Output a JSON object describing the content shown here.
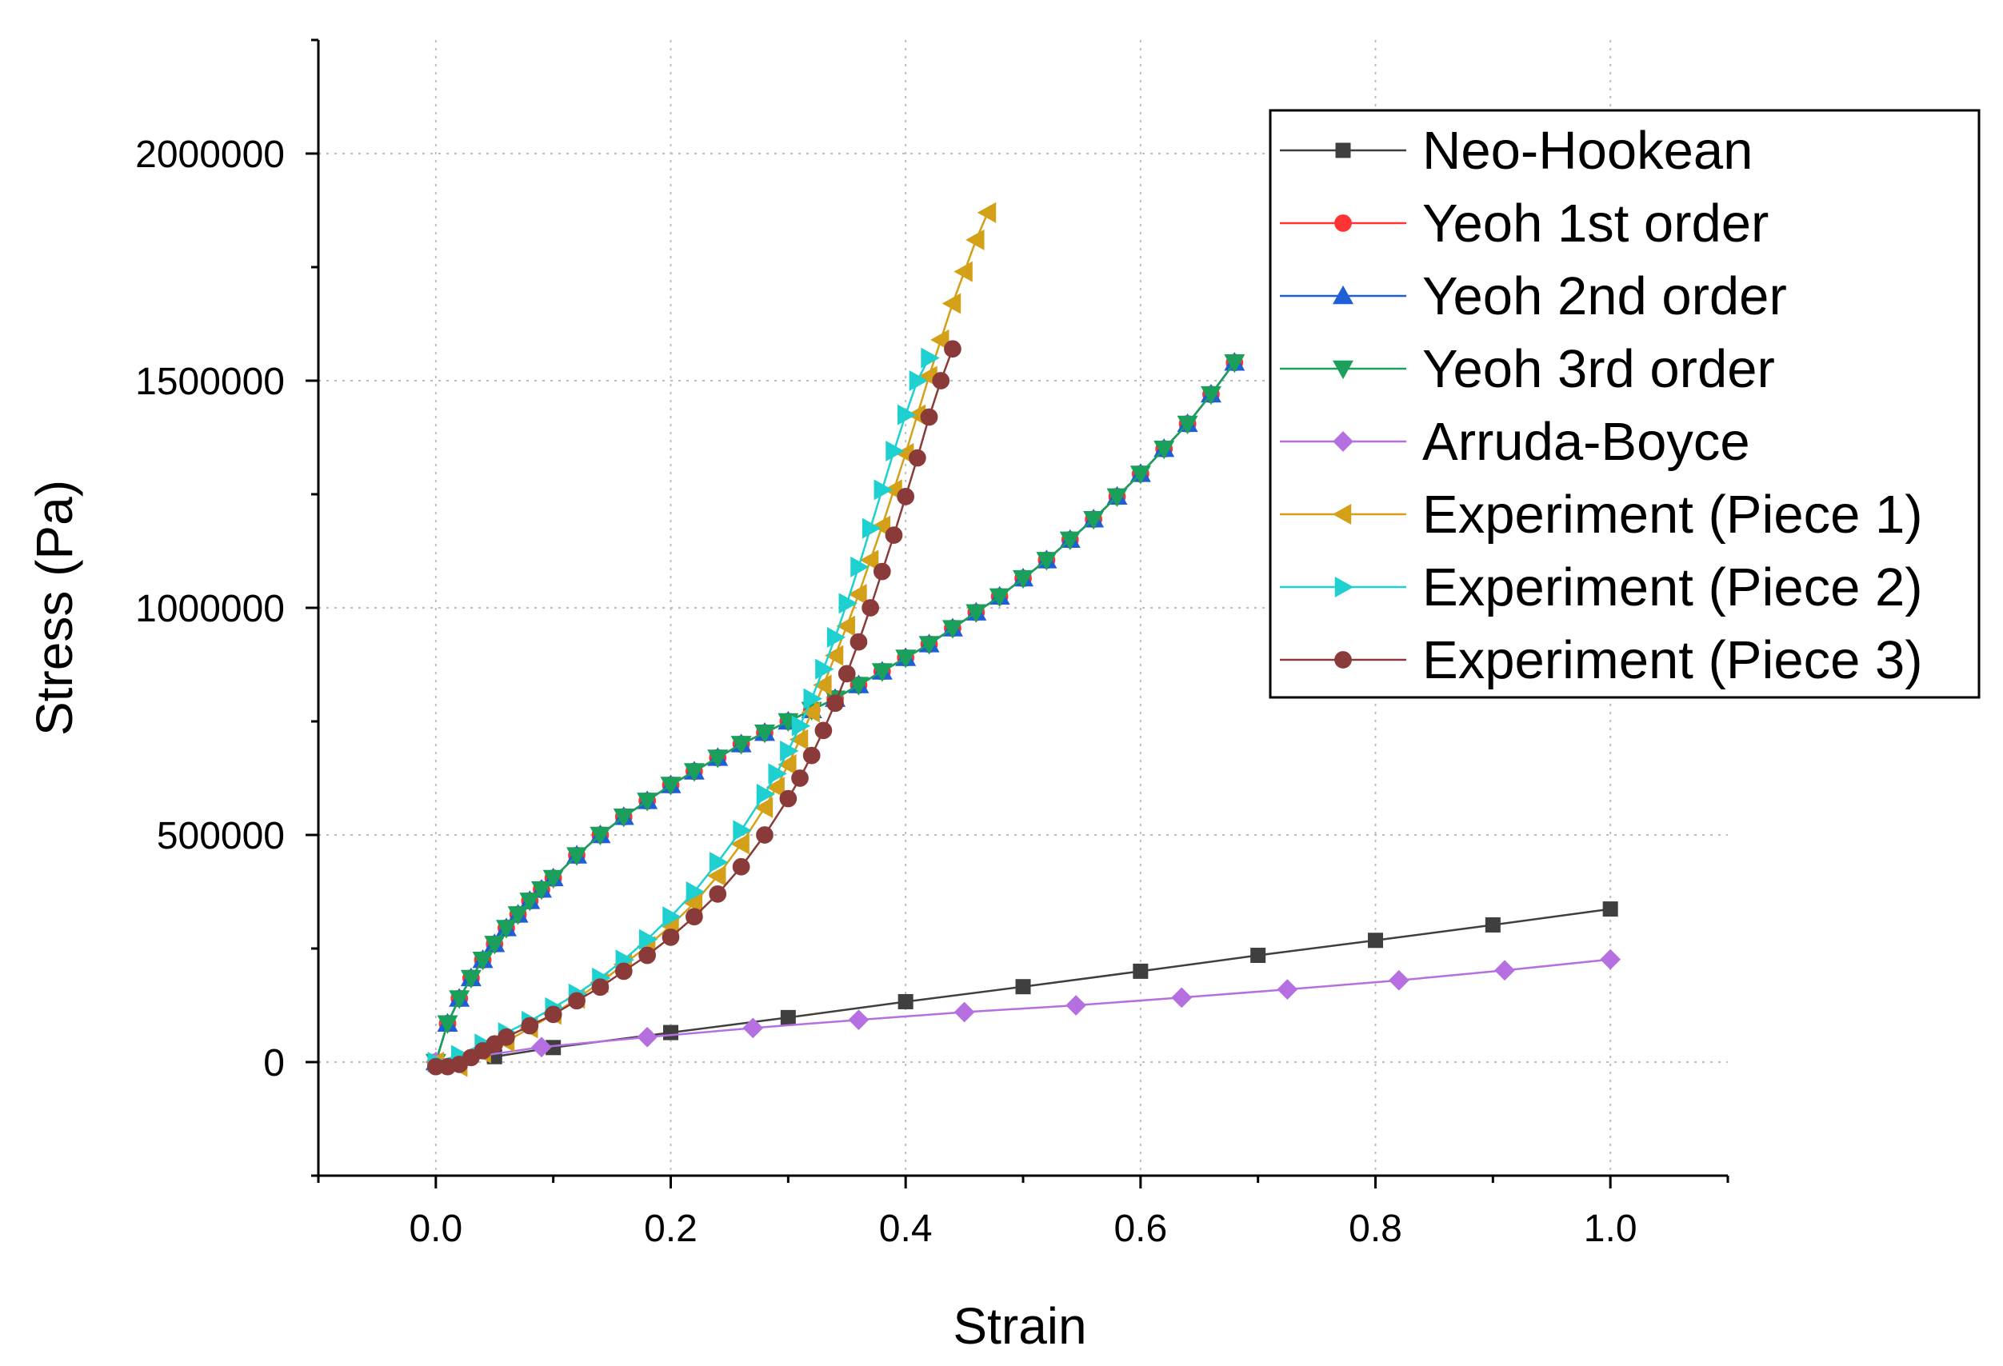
{
  "chart_data": {
    "type": "line",
    "title": "",
    "xlabel": "Strain",
    "ylabel": "Stress (Pa)",
    "xlim": [
      -0.1,
      1.1
    ],
    "ylim": [
      -250000,
      2250000
    ],
    "x_ticks": [
      0.0,
      0.2,
      0.4,
      0.6,
      0.8,
      1.0
    ],
    "x_tick_labels": [
      "0.0",
      "0.2",
      "0.4",
      "0.6",
      "0.8",
      "1.0"
    ],
    "y_ticks": [
      0,
      500000,
      1000000,
      1500000,
      2000000
    ],
    "y_tick_labels": [
      "0",
      "500000",
      "1000000",
      "1500000",
      "2000000"
    ],
    "grid": true,
    "legend_position": "top-right",
    "series": [
      {
        "name": "Neo-Hookean",
        "color": "#3f3f3f",
        "marker": "square",
        "x": [
          0,
          0.05,
          0.1,
          0.2,
          0.3,
          0.4,
          0.5,
          0.6,
          0.7,
          0.8,
          0.9,
          1.0
        ],
        "y": [
          0,
          12000,
          32000,
          65000,
          98000,
          133000,
          166000,
          200000,
          235000,
          268000,
          302000,
          337000
        ]
      },
      {
        "name": "Yeoh 1st order",
        "color": "#ff3333",
        "marker": "circle",
        "x": [
          0,
          0.01,
          0.02,
          0.03,
          0.04,
          0.05,
          0.06,
          0.07,
          0.08,
          0.09,
          0.1,
          0.12,
          0.14,
          0.16,
          0.18,
          0.2,
          0.22,
          0.24,
          0.26,
          0.28,
          0.3,
          0.32,
          0.34,
          0.36,
          0.38,
          0.4,
          0.42,
          0.44,
          0.46,
          0.48,
          0.5,
          0.52,
          0.54,
          0.56,
          0.58,
          0.6,
          0.62,
          0.64,
          0.66,
          0.68
        ],
        "y": [
          0,
          85000,
          140000,
          185000,
          225000,
          260000,
          295000,
          325000,
          355000,
          380000,
          405000,
          455000,
          500000,
          540000,
          575000,
          610000,
          640000,
          670000,
          700000,
          725000,
          750000,
          775000,
          800000,
          830000,
          860000,
          890000,
          920000,
          955000,
          990000,
          1025000,
          1065000,
          1105000,
          1150000,
          1195000,
          1245000,
          1295000,
          1350000,
          1405000,
          1470000,
          1540000
        ]
      },
      {
        "name": "Yeoh 2nd order",
        "color": "#1f5fd6",
        "marker": "triangle-up",
        "x": [
          0,
          0.01,
          0.02,
          0.03,
          0.04,
          0.05,
          0.06,
          0.07,
          0.08,
          0.09,
          0.1,
          0.12,
          0.14,
          0.16,
          0.18,
          0.2,
          0.22,
          0.24,
          0.26,
          0.28,
          0.3,
          0.32,
          0.34,
          0.36,
          0.38,
          0.4,
          0.42,
          0.44,
          0.46,
          0.48,
          0.5,
          0.52,
          0.54,
          0.56,
          0.58,
          0.6,
          0.62,
          0.64,
          0.66,
          0.68
        ],
        "y": [
          0,
          85000,
          140000,
          185000,
          225000,
          260000,
          295000,
          325000,
          355000,
          380000,
          405000,
          455000,
          500000,
          540000,
          575000,
          610000,
          640000,
          670000,
          700000,
          725000,
          750000,
          775000,
          800000,
          830000,
          860000,
          890000,
          920000,
          955000,
          990000,
          1025000,
          1065000,
          1105000,
          1150000,
          1195000,
          1245000,
          1295000,
          1350000,
          1405000,
          1470000,
          1540000
        ]
      },
      {
        "name": "Yeoh 3rd order",
        "color": "#1aa05a",
        "marker": "triangle-down",
        "x": [
          0,
          0.01,
          0.02,
          0.03,
          0.04,
          0.05,
          0.06,
          0.07,
          0.08,
          0.09,
          0.1,
          0.12,
          0.14,
          0.16,
          0.18,
          0.2,
          0.22,
          0.24,
          0.26,
          0.28,
          0.3,
          0.32,
          0.34,
          0.36,
          0.38,
          0.4,
          0.42,
          0.44,
          0.46,
          0.48,
          0.5,
          0.52,
          0.54,
          0.56,
          0.58,
          0.6,
          0.62,
          0.64,
          0.66,
          0.68
        ],
        "y": [
          0,
          85000,
          140000,
          185000,
          225000,
          260000,
          295000,
          325000,
          355000,
          380000,
          405000,
          455000,
          500000,
          540000,
          575000,
          610000,
          640000,
          670000,
          700000,
          725000,
          750000,
          775000,
          800000,
          830000,
          860000,
          890000,
          920000,
          955000,
          990000,
          1025000,
          1065000,
          1105000,
          1150000,
          1195000,
          1245000,
          1295000,
          1350000,
          1405000,
          1470000,
          1540000
        ]
      },
      {
        "name": "Arruda-Boyce",
        "color": "#b66fe0",
        "marker": "diamond",
        "x": [
          0.0,
          0.09,
          0.18,
          0.27,
          0.36,
          0.45,
          0.545,
          0.635,
          0.725,
          0.82,
          0.91,
          1.0
        ],
        "y": [
          0,
          33000,
          55000,
          75000,
          93000,
          110000,
          125000,
          142000,
          160000,
          180000,
          202000,
          226000
        ]
      },
      {
        "name": "Experiment (Piece 1)",
        "color": "#d4a017",
        "marker": "triangle-left",
        "x": [
          0.0,
          0.02,
          0.04,
          0.06,
          0.08,
          0.1,
          0.12,
          0.14,
          0.16,
          0.18,
          0.2,
          0.22,
          0.24,
          0.26,
          0.28,
          0.29,
          0.3,
          0.31,
          0.32,
          0.33,
          0.34,
          0.35,
          0.36,
          0.37,
          0.38,
          0.39,
          0.4,
          0.41,
          0.42,
          0.43,
          0.44,
          0.45,
          0.46,
          0.47
        ],
        "y": [
          0,
          -10000,
          20000,
          45000,
          75000,
          105000,
          140000,
          175000,
          215000,
          255000,
          300000,
          350000,
          410000,
          480000,
          560000,
          605000,
          655000,
          710000,
          770000,
          830000,
          895000,
          960000,
          1030000,
          1105000,
          1180000,
          1260000,
          1340000,
          1425000,
          1510000,
          1590000,
          1670000,
          1740000,
          1810000,
          1870000
        ]
      },
      {
        "name": "Experiment (Piece 2)",
        "color": "#1fd0d0",
        "marker": "triangle-right",
        "x": [
          0.0,
          0.02,
          0.04,
          0.06,
          0.08,
          0.1,
          0.12,
          0.14,
          0.16,
          0.18,
          0.2,
          0.22,
          0.24,
          0.26,
          0.28,
          0.29,
          0.3,
          0.31,
          0.32,
          0.33,
          0.34,
          0.35,
          0.36,
          0.37,
          0.38,
          0.39,
          0.4,
          0.41,
          0.42
        ],
        "y": [
          0,
          15000,
          40000,
          65000,
          90000,
          120000,
          150000,
          185000,
          225000,
          270000,
          320000,
          375000,
          440000,
          510000,
          590000,
          635000,
          685000,
          740000,
          800000,
          865000,
          935000,
          1010000,
          1090000,
          1175000,
          1260000,
          1345000,
          1425000,
          1500000,
          1550000
        ]
      },
      {
        "name": "Experiment (Piece 3)",
        "color": "#8b3a3a",
        "marker": "circle",
        "x": [
          0.0,
          0.01,
          0.02,
          0.03,
          0.04,
          0.05,
          0.06,
          0.08,
          0.1,
          0.12,
          0.14,
          0.16,
          0.18,
          0.2,
          0.22,
          0.24,
          0.26,
          0.28,
          0.3,
          0.31,
          0.32,
          0.33,
          0.34,
          0.35,
          0.36,
          0.37,
          0.38,
          0.39,
          0.4,
          0.41,
          0.42,
          0.43,
          0.44
        ],
        "y": [
          -10000,
          -10000,
          -5000,
          10000,
          25000,
          40000,
          55000,
          80000,
          105000,
          135000,
          165000,
          200000,
          235000,
          275000,
          320000,
          370000,
          430000,
          500000,
          580000,
          625000,
          675000,
          730000,
          790000,
          855000,
          925000,
          1000000,
          1080000,
          1160000,
          1245000,
          1330000,
          1420000,
          1500000,
          1570000
        ]
      }
    ]
  }
}
